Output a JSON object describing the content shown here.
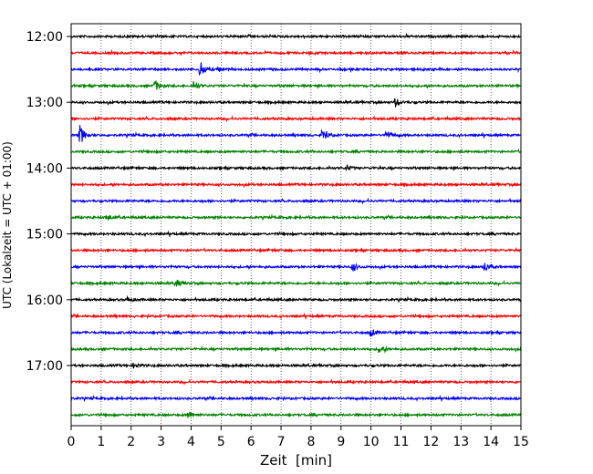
{
  "chart_data": {
    "type": "line",
    "title": "",
    "xlabel": "Zeit  [min]",
    "ylabel": "UTC (Lokalzeit = UTC + 01:00)",
    "xlim": [
      0,
      15
    ],
    "x_ticks": [
      0,
      1,
      2,
      3,
      4,
      5,
      6,
      7,
      8,
      9,
      10,
      11,
      12,
      13,
      14,
      15
    ],
    "x_tick_labels": [
      "0",
      "1",
      "2",
      "3",
      "4",
      "5",
      "6",
      "7",
      "8",
      "9",
      "10",
      "11",
      "12",
      "13",
      "14",
      "15"
    ],
    "y_tick_labels": [
      "12:00",
      "13:00",
      "14:00",
      "15:00",
      "16:00",
      "17:00"
    ],
    "y_tick_traces": [
      0,
      4,
      8,
      12,
      16,
      20
    ],
    "trace_interval_min": 15,
    "vertical_grid": true,
    "color_cycle": [
      "#000000",
      "#ff0000",
      "#0000ff",
      "#008000"
    ],
    "traces": [
      {
        "start": "12:00",
        "events": []
      },
      {
        "start": "12:15",
        "events": []
      },
      {
        "start": "12:30",
        "events": [
          {
            "t": 4.3,
            "amp": 9
          },
          {
            "t": 4.9,
            "amp": 3
          }
        ]
      },
      {
        "start": "12:45",
        "events": [
          {
            "t": 2.8,
            "amp": 6
          },
          {
            "t": 4.1,
            "amp": 5
          }
        ]
      },
      {
        "start": "13:00",
        "events": [
          {
            "t": 10.8,
            "amp": 4
          }
        ]
      },
      {
        "start": "13:15",
        "events": []
      },
      {
        "start": "13:30",
        "events": [
          {
            "t": 0.3,
            "amp": 11
          },
          {
            "t": 8.4,
            "amp": 7
          },
          {
            "t": 10.5,
            "amp": 6
          }
        ]
      },
      {
        "start": "13:45",
        "events": []
      },
      {
        "start": "14:00",
        "events": [
          {
            "t": 9.2,
            "amp": 3
          }
        ]
      },
      {
        "start": "14:15",
        "events": []
      },
      {
        "start": "14:30",
        "events": []
      },
      {
        "start": "14:45",
        "events": [
          {
            "t": 1.2,
            "amp": 3
          }
        ]
      },
      {
        "start": "15:00",
        "events": []
      },
      {
        "start": "15:15",
        "events": []
      },
      {
        "start": "15:30",
        "events": [
          {
            "t": 9.4,
            "amp": 4
          },
          {
            "t": 13.8,
            "amp": 5
          }
        ]
      },
      {
        "start": "15:45",
        "events": [
          {
            "t": 3.5,
            "amp": 4
          }
        ]
      },
      {
        "start": "16:00",
        "events": [
          {
            "t": 1.9,
            "amp": 3
          }
        ]
      },
      {
        "start": "16:15",
        "events": []
      },
      {
        "start": "16:30",
        "events": [
          {
            "t": 10.0,
            "amp": 4
          }
        ]
      },
      {
        "start": "16:45",
        "events": [
          {
            "t": 10.3,
            "amp": 5
          }
        ]
      },
      {
        "start": "17:00",
        "events": [
          {
            "t": 2.1,
            "amp": 3
          }
        ]
      },
      {
        "start": "17:15",
        "events": []
      },
      {
        "start": "17:30",
        "events": []
      },
      {
        "start": "17:45",
        "events": [
          {
            "t": 3.9,
            "amp": 4
          }
        ]
      }
    ]
  }
}
